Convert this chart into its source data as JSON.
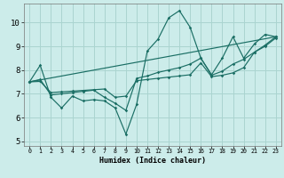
{
  "xlabel": "Humidex (Indice chaleur)",
  "background_color": "#ccecea",
  "grid_color": "#aad4d0",
  "line_color": "#1a6e64",
  "xlim": [
    -0.5,
    23.5
  ],
  "ylim": [
    4.8,
    10.8
  ],
  "xticks": [
    0,
    1,
    2,
    3,
    4,
    5,
    6,
    7,
    8,
    9,
    10,
    11,
    12,
    13,
    14,
    15,
    16,
    17,
    18,
    19,
    20,
    21,
    22,
    23
  ],
  "yticks": [
    5,
    6,
    7,
    8,
    9,
    10
  ],
  "series1_x": [
    0,
    1,
    2,
    3,
    4,
    5,
    6,
    7,
    8,
    9,
    10,
    11,
    12,
    13,
    14,
    15,
    16,
    17,
    18,
    19,
    20,
    21,
    22,
    23
  ],
  "series1_y": [
    7.5,
    8.2,
    6.85,
    6.4,
    6.9,
    6.7,
    6.75,
    6.7,
    6.4,
    5.3,
    6.55,
    8.8,
    9.3,
    10.2,
    10.5,
    9.8,
    8.5,
    7.8,
    8.5,
    9.4,
    8.5,
    9.1,
    9.5,
    9.4
  ],
  "series2_x": [
    0,
    1,
    2,
    3,
    4,
    5,
    6,
    7,
    8,
    9,
    10,
    11,
    12,
    13,
    14,
    15,
    16,
    17,
    18,
    19,
    20,
    21,
    22,
    23
  ],
  "series2_y": [
    7.5,
    7.6,
    6.95,
    7.0,
    7.05,
    7.1,
    7.15,
    6.85,
    6.6,
    6.3,
    7.65,
    7.75,
    7.9,
    8.0,
    8.1,
    8.25,
    8.5,
    7.78,
    7.95,
    8.25,
    8.45,
    8.75,
    9.05,
    9.4
  ],
  "series3_x": [
    0,
    1,
    2,
    3,
    4,
    5,
    6,
    7,
    8,
    9,
    10,
    11,
    12,
    13,
    14,
    15,
    16,
    17,
    18,
    19,
    20,
    21,
    22,
    23
  ],
  "series3_y": [
    7.5,
    7.52,
    7.05,
    7.08,
    7.11,
    7.14,
    7.17,
    7.2,
    6.85,
    6.9,
    7.55,
    7.6,
    7.65,
    7.7,
    7.75,
    7.8,
    8.3,
    7.72,
    7.78,
    7.88,
    8.1,
    8.75,
    9.0,
    9.35
  ],
  "series4_x": [
    0,
    23
  ],
  "series4_y": [
    7.5,
    9.4
  ]
}
